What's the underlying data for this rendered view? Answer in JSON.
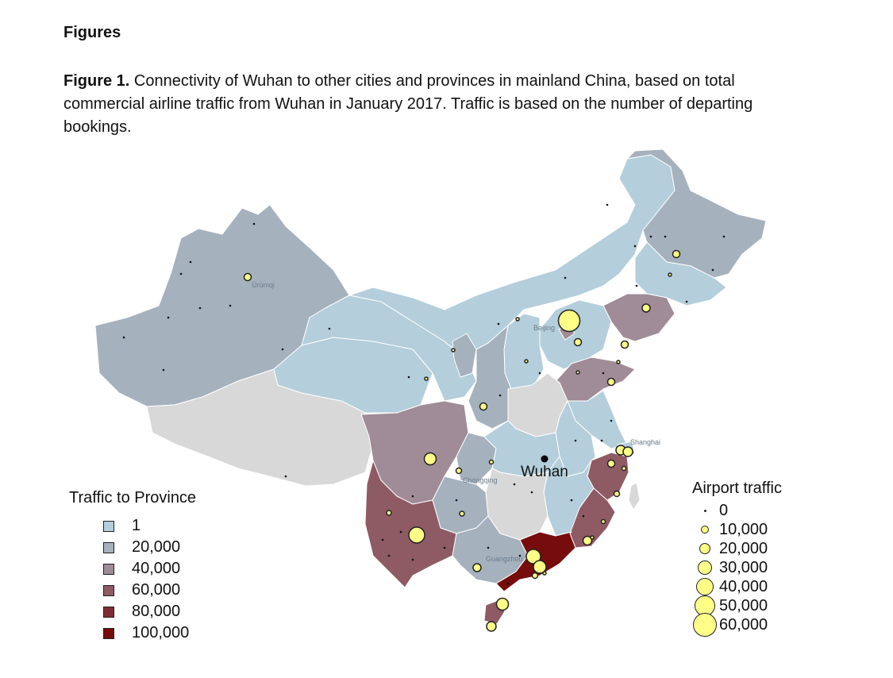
{
  "heading": "Figures",
  "caption": {
    "label": "Figure 1.",
    "text": " Connectivity of Wuhan to other cities and provinces in mainland China, based on total commercial airline traffic from Wuhan in January 2017. Traffic is based on the number of departing bookings."
  },
  "map": {
    "focus_city": "Wuhan",
    "city_labels": [
      "Ürümqi",
      "Beijing",
      "Shanghai",
      "Chongqing",
      "Guangzhou"
    ],
    "colors": {
      "t1": "#b4cedb",
      "t20000": "#a6b1be",
      "t40000": "#9f8c97",
      "t60000": "#8e5a64",
      "t80000": "#7e2d33",
      "t100000": "#760c0c",
      "nodata": "#d8d8d8",
      "bubble": "#ffff88"
    }
  },
  "legend_province": {
    "title": "Traffic to Province",
    "items": [
      {
        "label": "1",
        "color": "#b4cedb"
      },
      {
        "label": "20,000",
        "color": "#a6b1be"
      },
      {
        "label": "40,000",
        "color": "#9f8c97"
      },
      {
        "label": "60,000",
        "color": "#8e5a64"
      },
      {
        "label": "80,000",
        "color": "#7e2d33"
      },
      {
        "label": "100,000",
        "color": "#760c0c"
      }
    ]
  },
  "legend_airport": {
    "title": "Airport traffic",
    "items": [
      {
        "label": "0",
        "value": 0
      },
      {
        "label": "10,000",
        "value": 10000
      },
      {
        "label": "20,000",
        "value": 20000
      },
      {
        "label": "30,000",
        "value": 30000
      },
      {
        "label": "40,000",
        "value": 40000
      },
      {
        "label": "50,000",
        "value": 50000
      },
      {
        "label": "60,000",
        "value": 60000
      }
    ]
  }
}
